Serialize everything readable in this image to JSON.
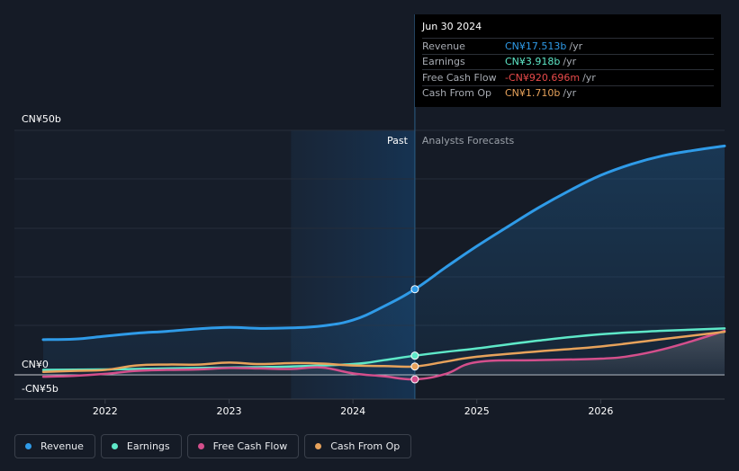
{
  "chart_data": {
    "type": "line",
    "title": "",
    "y_top_label": "CN¥50b",
    "y_zero_label": "CN¥0",
    "y_bottom_label": "-CN¥5b",
    "ylim": [
      -5,
      50
    ],
    "xlim": [
      2021.5,
      2027.0
    ],
    "x_ticks": [
      2022,
      2023,
      2024,
      2025,
      2026
    ],
    "x_tick_labels": [
      "2022",
      "2023",
      "2024",
      "2025",
      "2026"
    ],
    "past_label": "Past",
    "forecast_label": "Analysts Forecasts",
    "past_shade_start": 2023.5,
    "divider_x": 2024.5,
    "series": [
      {
        "name": "Revenue",
        "color": "#2f9be8",
        "x": [
          2021.5,
          2021.75,
          2022.0,
          2022.25,
          2022.5,
          2022.75,
          2023.0,
          2023.25,
          2023.5,
          2023.75,
          2024.0,
          2024.25,
          2024.5,
          2024.75,
          2025.0,
          2025.25,
          2025.5,
          2025.75,
          2026.0,
          2026.25,
          2026.5,
          2026.75,
          2027.0
        ],
        "values": [
          7.2,
          7.3,
          7.9,
          8.5,
          8.9,
          9.4,
          9.7,
          9.5,
          9.6,
          10.0,
          11.2,
          14.0,
          17.513,
          22.0,
          26.3,
          30.3,
          34.2,
          37.7,
          40.8,
          43.1,
          44.8,
          45.9,
          46.8
        ]
      },
      {
        "name": "Earnings",
        "color": "#5ee8c8",
        "x": [
          2021.5,
          2022.0,
          2022.5,
          2023.0,
          2023.5,
          2024.0,
          2024.25,
          2024.5,
          2024.75,
          2025.0,
          2025.5,
          2026.0,
          2026.5,
          2027.0
        ],
        "values": [
          1.0,
          1.1,
          1.3,
          1.5,
          1.7,
          2.2,
          3.0,
          3.918,
          4.7,
          5.4,
          7.0,
          8.3,
          9.0,
          9.5
        ]
      },
      {
        "name": "Free Cash Flow",
        "color": "#d44f8c",
        "x": [
          2021.5,
          2021.75,
          2022.0,
          2022.25,
          2022.5,
          2022.75,
          2023.0,
          2023.25,
          2023.5,
          2023.75,
          2024.0,
          2024.25,
          2024.5,
          2024.75,
          2025.0,
          2025.5,
          2026.0,
          2026.25,
          2026.5,
          2026.75,
          2027.0
        ],
        "values": [
          -0.4,
          -0.2,
          0.2,
          0.8,
          1.0,
          1.1,
          1.4,
          1.3,
          1.2,
          1.5,
          0.3,
          -0.3,
          -0.920696,
          0.2,
          2.6,
          3.0,
          3.3,
          3.9,
          5.2,
          7.0,
          9.0
        ]
      },
      {
        "name": "Cash From Op",
        "color": "#e7a25b",
        "x": [
          2021.5,
          2021.75,
          2022.0,
          2022.25,
          2022.5,
          2022.75,
          2023.0,
          2023.25,
          2023.5,
          2023.75,
          2024.0,
          2024.25,
          2024.5,
          2024.75,
          2025.0,
          2025.5,
          2026.0,
          2026.5,
          2027.0
        ],
        "values": [
          0.6,
          0.8,
          1.0,
          1.9,
          2.1,
          2.1,
          2.5,
          2.2,
          2.4,
          2.3,
          1.9,
          1.8,
          1.71,
          2.7,
          3.7,
          4.8,
          5.8,
          7.3,
          8.8
        ]
      }
    ],
    "highlight_x": 2024.5
  },
  "tooltip": {
    "date": "Jun 30 2024",
    "rows": [
      {
        "name": "Revenue",
        "value": "CN¥17.513b",
        "unit": "/yr",
        "color": "#2f9be8"
      },
      {
        "name": "Earnings",
        "value": "CN¥3.918b",
        "unit": "/yr",
        "color": "#5ee8c8"
      },
      {
        "name": "Free Cash Flow",
        "value": "-CN¥920.696m",
        "unit": "/yr",
        "color": "#e84a4a"
      },
      {
        "name": "Cash From Op",
        "value": "CN¥1.710b",
        "unit": "/yr",
        "color": "#e7a25b"
      }
    ]
  },
  "legend": [
    {
      "label": "Revenue",
      "color": "#2f9be8"
    },
    {
      "label": "Earnings",
      "color": "#5ee8c8"
    },
    {
      "label": "Free Cash Flow",
      "color": "#d44f8c"
    },
    {
      "label": "Cash From Op",
      "color": "#e7a25b"
    }
  ]
}
